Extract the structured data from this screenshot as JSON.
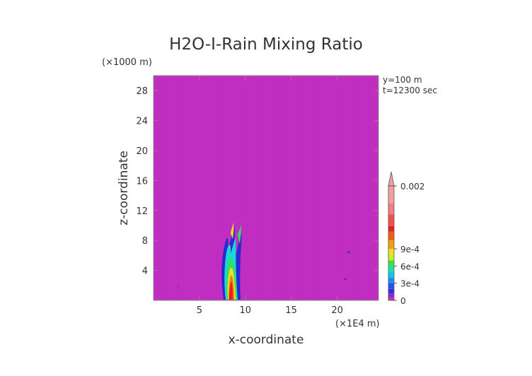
{
  "chart_data": {
    "type": "heatmap",
    "title": "H2O-I-Rain Mixing Ratio",
    "xlabel": "x-coordinate",
    "ylabel": "z-coordinate",
    "x_unit": "(×1E4 m)",
    "y_unit": "(×1000 m)",
    "annotations": [
      "y=100 m",
      "t=12300 sec"
    ],
    "xlim": [
      0,
      24.5
    ],
    "ylim": [
      0,
      30
    ],
    "x_ticks": [
      5,
      10,
      15,
      20
    ],
    "y_ticks": [
      4,
      8,
      12,
      16,
      20,
      24,
      28
    ],
    "background_color": "#c030c0",
    "colorbar": {
      "tick_labels": [
        "0",
        "3e-4",
        "6e-4",
        "9e-4",
        "0.002"
      ],
      "tick_values": [
        0,
        0.0003,
        0.0006,
        0.0009,
        0.002
      ],
      "extend": "max"
    }
  }
}
